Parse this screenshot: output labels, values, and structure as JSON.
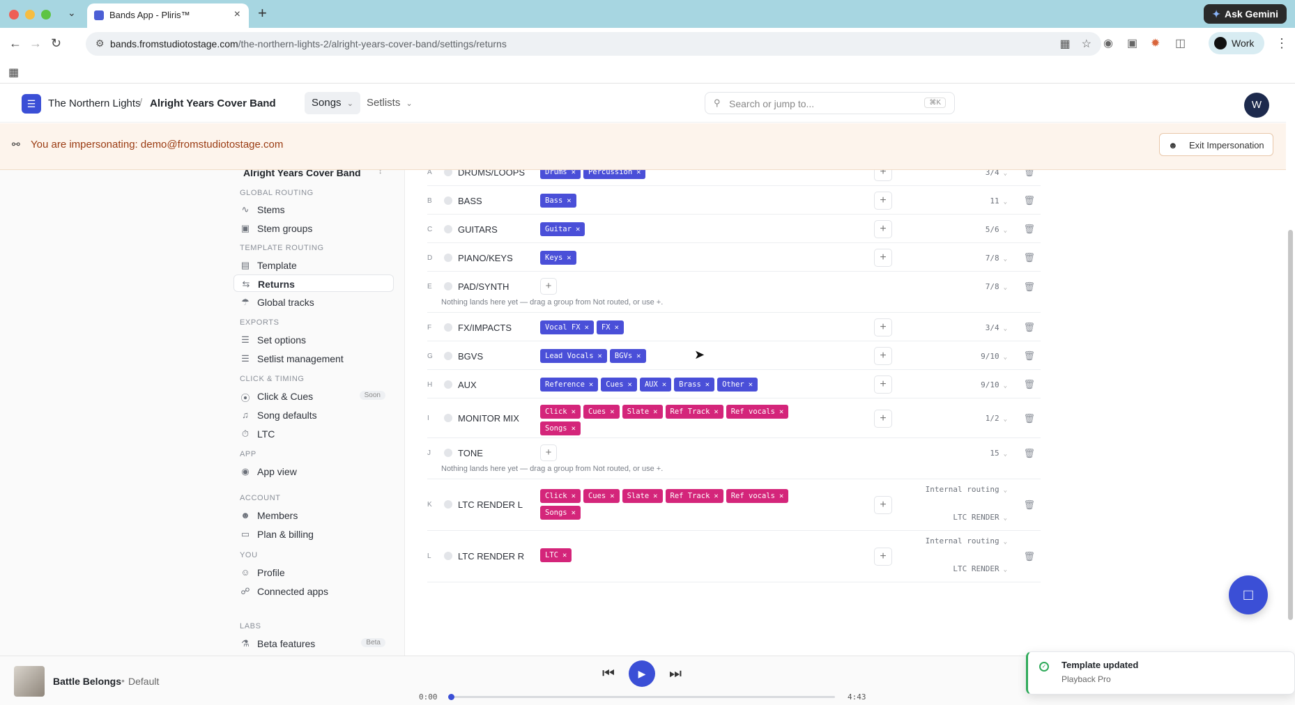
{
  "browser": {
    "tab_title": "Bands App - Pliris™",
    "ask_gemini": "Ask Gemini",
    "url_host": "bands.fromstudiotostage.com",
    "url_path": "/the-northern-lights-2/alright-years-cover-band/settings/returns",
    "profile": "Work"
  },
  "header": {
    "org": "The Northern Lights",
    "sep": "/",
    "band": "Alright Years Cover Band",
    "nav_songs": "Songs",
    "nav_setlists": "Setlists",
    "search_placeholder": "Search or jump to...",
    "search_shortcut": "⌘K",
    "avatar": "W"
  },
  "banner": {
    "text": "You are impersonating: demo@fromstudiotostage.com",
    "exit": "Exit Impersonation"
  },
  "sidebar": {
    "band": "Alright Years Cover Band",
    "sections": {
      "global_routing": "GLOBAL ROUTING",
      "template_routing": "TEMPLATE ROUTING",
      "exports": "EXPORTS",
      "click_timing": "CLICK & TIMING",
      "app": "APP",
      "account": "ACCOUNT",
      "you": "YOU",
      "labs": "LABS"
    },
    "items": {
      "stems": "Stems",
      "stem_groups": "Stem groups",
      "template": "Template",
      "returns": "Returns",
      "global_tracks": "Global tracks",
      "set_options": "Set options",
      "setlist_management": "Setlist management",
      "click_cues": "Click & Cues",
      "click_cues_badge": "Soon",
      "song_defaults": "Song defaults",
      "ltc": "LTC",
      "app_view": "App view",
      "members": "Members",
      "plan_billing": "Plan & billing",
      "profile": "Profile",
      "connected_apps": "Connected apps",
      "beta_features": "Beta features",
      "beta_badge": "Beta"
    }
  },
  "returns": {
    "empty_note": "Nothing lands here yet — drag a group from Not routed, or use +.",
    "rows": [
      {
        "letter": "A",
        "name": "DRUMS/LOOPS",
        "count": "3/4",
        "chips": [
          "Drums",
          "Percussion"
        ]
      },
      {
        "letter": "B",
        "name": "BASS",
        "count": "11",
        "chips": [
          "Bass"
        ]
      },
      {
        "letter": "C",
        "name": "GUITARS",
        "count": "5/6",
        "chips": [
          "Guitar"
        ]
      },
      {
        "letter": "D",
        "name": "PIANO/KEYS",
        "count": "7/8",
        "chips": [
          "Keys"
        ]
      },
      {
        "letter": "E",
        "name": "PAD/SYNTH",
        "count": "7/8",
        "chips": []
      },
      {
        "letter": "F",
        "name": "FX/IMPACTS",
        "count": "3/4",
        "chips": [
          "Vocal FX",
          "FX"
        ]
      },
      {
        "letter": "G",
        "name": "BGVS",
        "count": "9/10",
        "chips": [
          "Lead Vocals",
          "BGVs"
        ]
      },
      {
        "letter": "H",
        "name": "AUX",
        "count": "9/10",
        "chips": [
          "Reference",
          "Cues",
          "AUX",
          "Brass",
          "Other"
        ]
      },
      {
        "letter": "I",
        "name": "MONITOR MIX",
        "count": "1/2",
        "chips": [
          "Click",
          "Cues",
          "Slate",
          "Ref Track",
          "Ref vocals",
          "Songs"
        ]
      },
      {
        "letter": "J",
        "name": "TONE",
        "count": "15",
        "chips": []
      },
      {
        "letter": "K",
        "name": "LTC RENDER L",
        "route": "Internal routing",
        "target": "LTC RENDER",
        "chips": [
          "Click",
          "Cues",
          "Slate",
          "Ref Track",
          "Ref vocals",
          "Songs"
        ]
      },
      {
        "letter": "L",
        "name": "LTC RENDER R",
        "route": "Internal routing",
        "target": "LTC RENDER",
        "chips": [
          "LTC"
        ]
      }
    ]
  },
  "player": {
    "song": "Battle Belongs",
    "sep": "•",
    "preset": "Default",
    "time_current": "0:00",
    "time_total": "4:43",
    "progress": 0
  },
  "toast": {
    "title": "Template updated",
    "subtitle": "Playback Pro"
  },
  "colors": {
    "accent": "#3b4fd6",
    "chip_blue": "#4a4fd8",
    "chip_pink": "#d4257a",
    "banner_bg": "#fdf4ec",
    "banner_text": "#9a3b12",
    "success": "#2faa5a"
  }
}
